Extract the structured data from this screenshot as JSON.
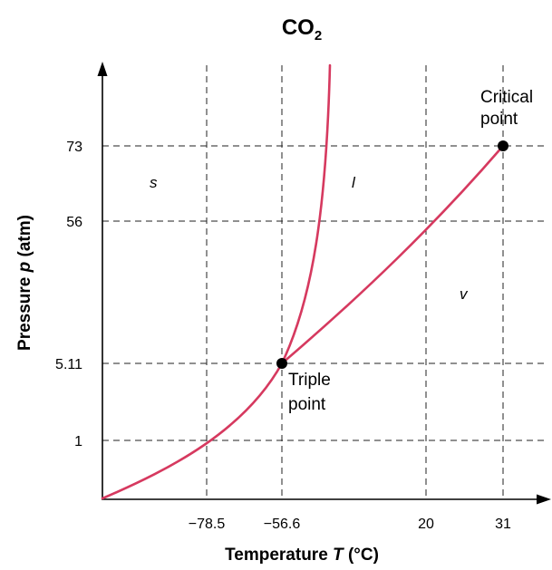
{
  "chart_data": {
    "type": "line",
    "title_main": "CO",
    "title_sub": "2",
    "xlabel": "Temperature",
    "xlabel_symbol": "T",
    "xlabel_unit": "(°C)",
    "ylabel": "Pressure",
    "ylabel_symbol": "p",
    "ylabel_unit": "(atm)",
    "x_ticks": [
      {
        "label": "−78.5",
        "value": -78.5
      },
      {
        "label": "−56.6",
        "value": -56.6
      },
      {
        "label": "20",
        "value": 20
      },
      {
        "label": "31",
        "value": 31
      }
    ],
    "y_ticks": [
      {
        "label": "1",
        "value": 1
      },
      {
        "label": "5.11",
        "value": 5.11
      },
      {
        "label": "56",
        "value": 56
      },
      {
        "label": "73",
        "value": 73
      }
    ],
    "grid": true,
    "scale_note": "axes are schematic (not to scale)",
    "regions": [
      {
        "label": "s",
        "T": -90,
        "p": 65
      },
      {
        "label": "l",
        "T": -45,
        "p": 65
      },
      {
        "label": "v",
        "T": 25,
        "p": 30
      }
    ],
    "points": [
      {
        "name": "triple",
        "label_lines": [
          "Triple",
          "point"
        ],
        "T": -56.6,
        "p": 5.11
      },
      {
        "name": "critical",
        "label_lines": [
          "Critical",
          "point"
        ],
        "T": 31,
        "p": 73
      }
    ],
    "curve_colors": {
      "phase_boundary": "#d6395f"
    }
  }
}
